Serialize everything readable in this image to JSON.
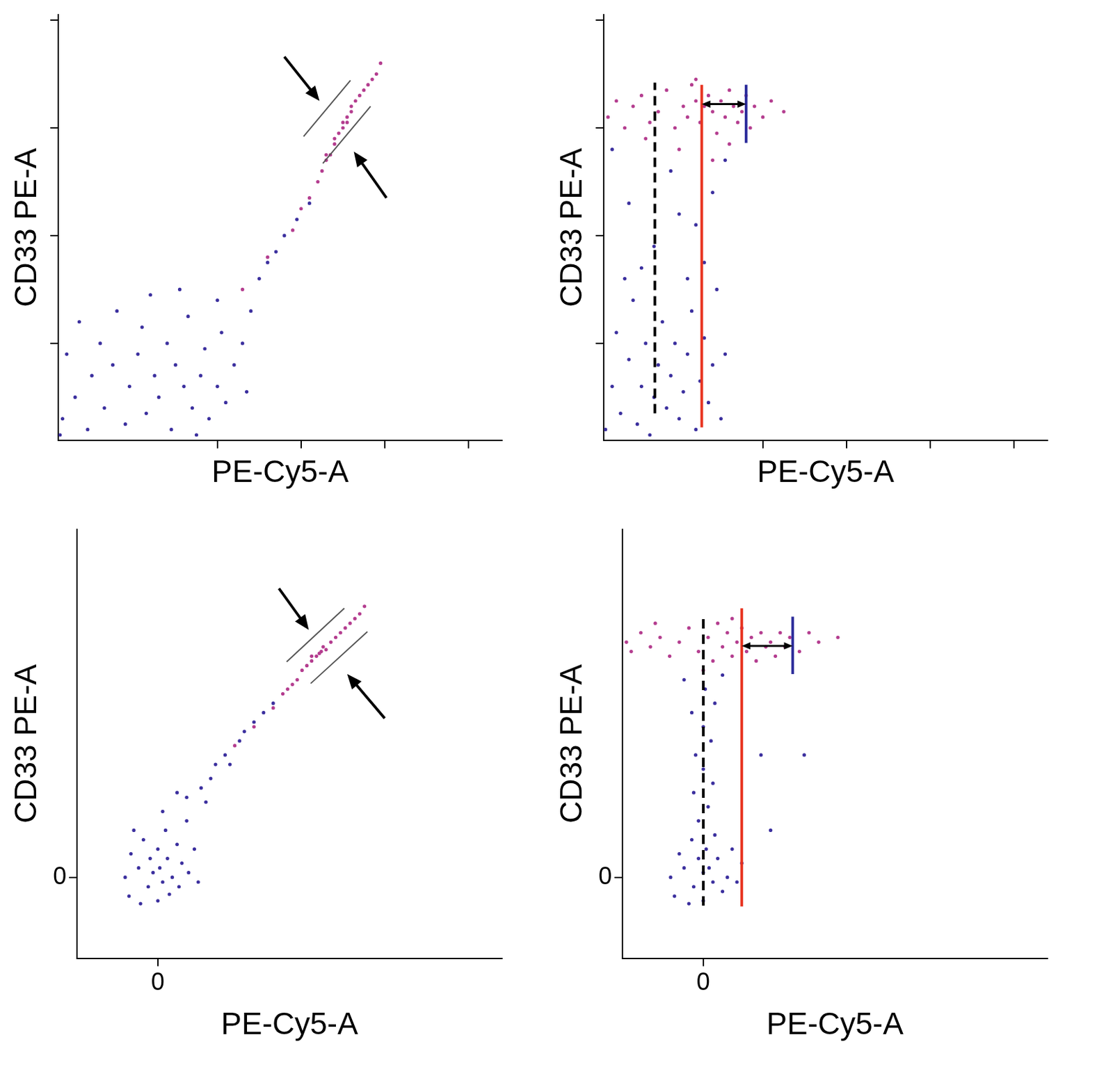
{
  "chart_data": [
    {
      "type": "scatter",
      "x_label": "PE-Cy5-A",
      "y_label": "CD33 PE-A",
      "xlim": [
        -0.9,
        4.4
      ],
      "ylim": [
        0.1,
        4.05
      ],
      "xticks": [
        1,
        2,
        3,
        4
      ],
      "yticks": [
        1,
        2,
        3,
        4
      ],
      "tick_labels": false,
      "grid": false,
      "series": [
        {
          "color": "#3b2f9e",
          "x": [
            -0.85,
            -0.8,
            -0.7,
            -0.65,
            -0.55,
            -0.5,
            -0.4,
            -0.35,
            -0.25,
            -0.2,
            -0.1,
            -0.05,
            0.05,
            0.1,
            0.15,
            0.25,
            0.3,
            0.4,
            0.45,
            0.5,
            0.6,
            0.65,
            0.7,
            0.8,
            0.85,
            0.9,
            1.0,
            1.05,
            1.1,
            1.2,
            1.3,
            1.35,
            1.4,
            0.2,
            0.55,
            1.5,
            1.6,
            1.7,
            1.8,
            1.95,
            2.1,
            1.0,
            0.75,
            -0.88
          ],
          "values": [
            0.3,
            0.9,
            0.5,
            1.2,
            0.2,
            0.7,
            1.0,
            0.4,
            0.8,
            1.3,
            0.25,
            0.6,
            0.9,
            1.15,
            0.35,
            0.7,
            0.5,
            1.0,
            0.2,
            0.8,
            0.6,
            1.25,
            0.4,
            0.7,
            0.95,
            0.3,
            0.6,
            1.1,
            0.45,
            0.8,
            1.0,
            0.55,
            1.3,
            1.45,
            1.5,
            1.6,
            1.75,
            1.85,
            2.0,
            2.15,
            2.3,
            1.4,
            0.15,
            0.15
          ]
        },
        {
          "color": "#b43d8f",
          "x": [
            1.9,
            2.0,
            2.1,
            2.2,
            2.25,
            2.3,
            2.35,
            2.4,
            2.45,
            2.5,
            2.5,
            2.55,
            2.6,
            2.6,
            2.65,
            2.7,
            2.75,
            2.8,
            2.85,
            2.9,
            2.95,
            2.4,
            2.3,
            2.55,
            1.3,
            1.6
          ],
          "values": [
            2.05,
            2.25,
            2.35,
            2.5,
            2.6,
            2.7,
            2.75,
            2.85,
            2.95,
            3.0,
            3.05,
            3.1,
            3.15,
            3.2,
            3.25,
            3.3,
            3.35,
            3.4,
            3.45,
            3.5,
            3.6,
            2.9,
            2.75,
            3.05,
            1.5,
            1.8
          ]
        }
      ],
      "gates": [
        {
          "x": [
            2.03,
            2.59
          ],
          "y": [
            2.92,
            3.44
          ]
        },
        {
          "x": [
            2.26,
            2.83
          ],
          "y": [
            2.67,
            3.2
          ]
        }
      ],
      "arrows": [
        {
          "x": [
            1.8,
            2.22
          ],
          "y": [
            3.66,
            3.25
          ]
        },
        {
          "x": [
            3.02,
            2.63
          ],
          "y": [
            2.35,
            2.78
          ]
        }
      ]
    },
    {
      "type": "scatter",
      "x_label": "PE-Cy5-A",
      "y_label": "CD33 PE-A",
      "xlim": [
        -0.9,
        4.4
      ],
      "ylim": [
        0.1,
        4.05
      ],
      "xticks": [
        1,
        2,
        3,
        4
      ],
      "yticks": [
        1,
        2,
        3,
        4
      ],
      "tick_labels": false,
      "grid": false,
      "series": [
        {
          "color": "#3b2f9e",
          "x": [
            -0.88,
            -0.8,
            -0.75,
            -0.7,
            -0.6,
            -0.55,
            -0.5,
            -0.45,
            -0.4,
            -0.35,
            -0.3,
            -0.25,
            -0.2,
            -0.15,
            -0.1,
            -0.05,
            0,
            0.05,
            0.1,
            0.15,
            0.2,
            0.25,
            0.3,
            0.35,
            0.4,
            0.45,
            0.5,
            0.55,
            -0.65,
            0.1,
            -0.3,
            0.2,
            -0.6,
            0.4,
            -0.1,
            0.55,
            -0.8,
            0.0,
            0.3,
            -0.45
          ],
          "values": [
            0.2,
            0.6,
            1.1,
            0.35,
            0.85,
            1.4,
            0.25,
            0.6,
            1.0,
            0.15,
            0.5,
            0.8,
            1.2,
            0.4,
            0.7,
            1.0,
            0.3,
            0.55,
            0.9,
            1.3,
            0.2,
            0.65,
            1.05,
            0.45,
            0.8,
            1.5,
            0.3,
            0.9,
            1.6,
            1.6,
            1.9,
            2.1,
            2.3,
            2.4,
            2.6,
            2.7,
            2.8,
            2.2,
            1.75,
            1.7
          ]
        },
        {
          "color": "#b43d8f",
          "x": [
            -0.85,
            -0.75,
            -0.65,
            -0.55,
            -0.45,
            -0.35,
            -0.25,
            -0.15,
            -0.05,
            0.05,
            0.1,
            0.15,
            0.2,
            0.25,
            0.3,
            0.35,
            0.4,
            0.45,
            0.5,
            0.55,
            0.6,
            0.65,
            0.7,
            0.75,
            0.8,
            0.85,
            0.9,
            1.0,
            1.1,
            1.25,
            0.0,
            0.4,
            -0.4,
            0.6,
            0.2
          ],
          "values": [
            3.1,
            3.25,
            3.0,
            3.2,
            3.3,
            3.05,
            3.15,
            3.35,
            3.0,
            3.2,
            3.1,
            3.4,
            3.25,
            3.05,
            3.2,
            3.3,
            3.15,
            2.95,
            3.25,
            3.1,
            3.35,
            3.2,
            3.05,
            3.15,
            3.3,
            3.0,
            3.2,
            3.1,
            3.25,
            3.15,
            2.8,
            2.7,
            2.9,
            2.85,
            3.45
          ]
        }
      ],
      "reference_lines": [
        {
          "x": -0.29,
          "y": [
            0.35,
            3.42
          ],
          "color": "#000000",
          "line_style": "dashed"
        },
        {
          "x": 0.27,
          "y": [
            0.22,
            3.4
          ],
          "color": "#e8321e",
          "line_style": "solid"
        },
        {
          "x": 0.8,
          "y": [
            2.86,
            3.4
          ],
          "color": "#2a2a9a",
          "line_style": "solid"
        }
      ],
      "double_arrows": [
        {
          "x": [
            0.27,
            0.8
          ],
          "y": 3.22,
          "color": "#000000"
        }
      ]
    },
    {
      "type": "scatter",
      "x_label": "PE-Cy5-A",
      "y_label": "CD33 PE-A",
      "xlim": [
        -0.84,
        3.58
      ],
      "ylim": [
        -0.86,
        3.7
      ],
      "xticks": [
        0
      ],
      "yticks": [
        0
      ],
      "tick_labels": true,
      "grid": false,
      "series": [
        {
          "color": "#3b2f9e",
          "x": [
            -0.34,
            -0.3,
            -0.28,
            -0.2,
            -0.18,
            -0.15,
            -0.1,
            -0.08,
            -0.05,
            0,
            0,
            0.02,
            0.05,
            0.08,
            0.1,
            0.12,
            0.15,
            0.2,
            0.22,
            0.25,
            0.3,
            0.32,
            0.38,
            0.42,
            -0.25,
            0.05,
            0.3,
            0.45,
            0.55,
            0.6,
            0.7,
            0.75,
            0.85,
            0.9,
            1.0,
            1.1,
            1.2,
            0.2,
            0.5
          ],
          "values": [
            0.0,
            -0.2,
            0.25,
            0.1,
            -0.28,
            0.4,
            -0.1,
            0.2,
            0.05,
            -0.25,
            0.3,
            0.1,
            -0.05,
            0.5,
            0.2,
            -0.18,
            0.0,
            0.35,
            -0.1,
            0.15,
            0.6,
            0.05,
            0.3,
            -0.05,
            0.5,
            0.7,
            0.85,
            0.95,
            1.05,
            1.2,
            1.3,
            1.2,
            1.45,
            1.55,
            1.65,
            1.75,
            1.85,
            0.9,
            0.8
          ]
        },
        {
          "color": "#b43d8f",
          "x": [
            1.0,
            1.2,
            1.3,
            1.4,
            1.45,
            1.5,
            1.55,
            1.6,
            1.65,
            1.7,
            1.72,
            1.75,
            1.8,
            1.85,
            1.9,
            1.95,
            2.0,
            2.05,
            2.1,
            2.15,
            1.6,
            1.35,
            0.8,
            1.68
          ],
          "values": [
            1.6,
            1.8,
            1.95,
            2.05,
            2.1,
            2.2,
            2.25,
            2.3,
            2.35,
            2.4,
            2.45,
            2.42,
            2.5,
            2.55,
            2.6,
            2.65,
            2.7,
            2.75,
            2.8,
            2.88,
            2.35,
            2.0,
            1.4,
            2.38
          ]
        }
      ],
      "gates": [
        {
          "x": [
            1.34,
            1.94
          ],
          "y": [
            2.29,
            2.86
          ]
        },
        {
          "x": [
            1.59,
            2.18
          ],
          "y": [
            2.06,
            2.61
          ]
        }
      ],
      "arrows": [
        {
          "x": [
            1.26,
            1.57
          ],
          "y": [
            3.07,
            2.63
          ]
        },
        {
          "x": [
            2.36,
            1.97
          ],
          "y": [
            1.69,
            2.16
          ]
        }
      ]
    },
    {
      "type": "scatter",
      "x_label": "PE-Cy5-A",
      "y_label": "CD33 PE-A",
      "xlim": [
        -0.84,
        3.58
      ],
      "ylim": [
        -0.86,
        3.7
      ],
      "xticks": [
        0
      ],
      "yticks": [
        0
      ],
      "tick_labels": true,
      "grid": false,
      "series": [
        {
          "color": "#3b2f9e",
          "x": [
            -0.34,
            -0.3,
            -0.25,
            -0.2,
            -0.15,
            -0.12,
            -0.1,
            -0.05,
            0,
            0,
            0.03,
            0.06,
            0.1,
            0.12,
            0.15,
            0.2,
            0.25,
            0.3,
            0.35,
            0.4,
            -0.05,
            0.05,
            -0.1,
            0.1,
            0.0,
            -0.08,
            0.08,
            0.0,
            -0.12,
            0.12,
            0.02,
            -0.2,
            0.2,
            0.6,
            0.7,
            1.05
          ],
          "values": [
            0.0,
            -0.2,
            0.25,
            0.1,
            -0.28,
            0.4,
            -0.1,
            0.2,
            0.05,
            -0.25,
            0.3,
            0.1,
            -0.05,
            0.45,
            0.2,
            -0.15,
            0.0,
            0.3,
            -0.05,
            0.15,
            0.6,
            0.75,
            0.9,
            1.0,
            1.15,
            1.3,
            1.45,
            1.6,
            1.75,
            1.85,
            2.0,
            2.1,
            2.15,
            1.3,
            0.5,
            1.3
          ]
        },
        {
          "color": "#b43d8f",
          "x": [
            -0.8,
            -0.75,
            -0.65,
            -0.55,
            -0.45,
            -0.35,
            -0.25,
            -0.15,
            -0.05,
            0.05,
            0.1,
            0.15,
            0.2,
            0.25,
            0.3,
            0.35,
            0.4,
            0.45,
            0.5,
            0.55,
            0.6,
            0.65,
            0.7,
            0.75,
            0.8,
            0.85,
            0.9,
            1.0,
            1.1,
            1.2,
            1.4,
            0.0,
            0.3,
            -0.5
          ],
          "values": [
            2.5,
            2.4,
            2.6,
            2.45,
            2.55,
            2.35,
            2.5,
            2.65,
            2.4,
            2.55,
            2.3,
            2.7,
            2.45,
            2.6,
            2.35,
            2.5,
            2.65,
            2.4,
            2.55,
            2.3,
            2.6,
            2.45,
            2.5,
            2.35,
            2.6,
            2.45,
            2.55,
            2.4,
            2.6,
            2.5,
            2.55,
            2.2,
            2.75,
            2.7
          ]
        }
      ],
      "reference_lines": [
        {
          "x": 0,
          "y": [
            -0.3,
            2.8
          ],
          "color": "#000000",
          "line_style": "dashed"
        },
        {
          "x": 0.4,
          "y": [
            -0.31,
            2.86
          ],
          "color": "#e8321e",
          "line_style": "solid"
        },
        {
          "x": 0.93,
          "y": [
            2.16,
            2.77
          ],
          "color": "#2a2a9a",
          "line_style": "solid"
        }
      ],
      "double_arrows": [
        {
          "x": [
            0.4,
            0.93
          ],
          "y": 2.46,
          "color": "#000000"
        }
      ]
    }
  ]
}
